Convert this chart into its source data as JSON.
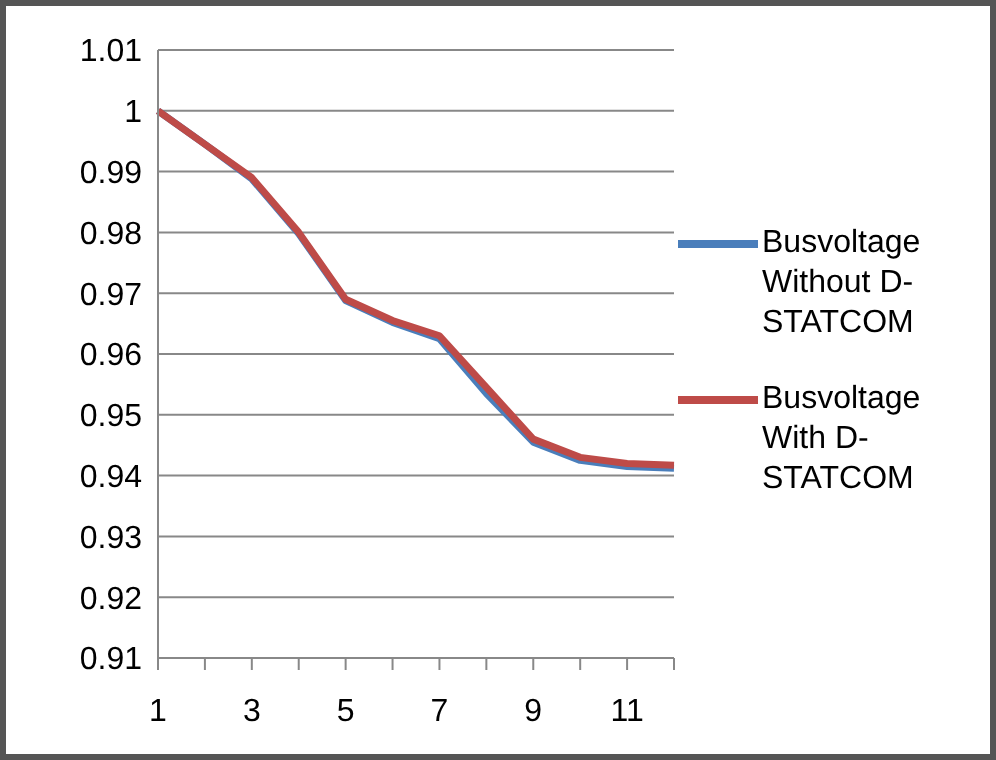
{
  "chart_data": {
    "type": "line",
    "categories": [
      "1",
      null,
      "3",
      null,
      "5",
      null,
      "7",
      null,
      "9",
      null,
      "11",
      null
    ],
    "series": [
      {
        "name": "Busvoltage Without D-STATCOM",
        "color": "#4a7ebb",
        "values": [
          1,
          0.9945,
          0.9888,
          0.9798,
          0.9688,
          0.9652,
          0.9625,
          0.9535,
          0.9455,
          0.9425,
          0.9415,
          0.9412
        ]
      },
      {
        "name": "Busvoltage With D-STATCOM",
        "color": "#be4b48",
        "values": [
          1,
          0.9945,
          0.989,
          0.98,
          0.969,
          0.9655,
          0.963,
          0.9545,
          0.946,
          0.943,
          0.942,
          0.9417
        ]
      }
    ],
    "ylim": [
      0.91,
      1.01
    ],
    "yticks": [
      0.91,
      0.92,
      0.93,
      0.94,
      0.95,
      0.96,
      0.97,
      0.98,
      0.99,
      1,
      1.01
    ],
    "grid": "y",
    "legend": "right",
    "marker": "none",
    "line_style": "solid"
  }
}
